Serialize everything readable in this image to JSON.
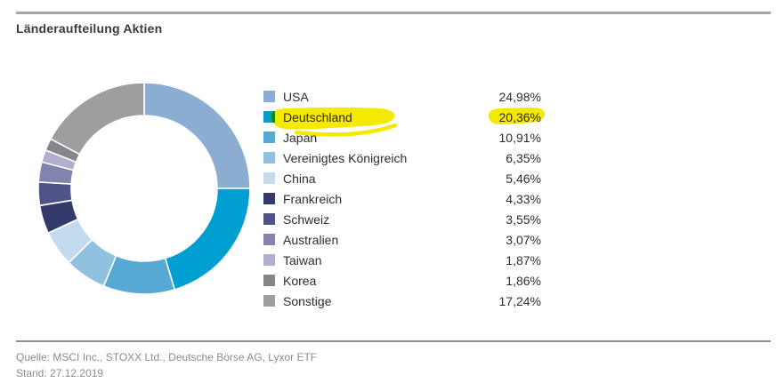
{
  "title": "Länderaufteilung Aktien",
  "chart_data": {
    "type": "pie",
    "variant": "donut",
    "title": "Länderaufteilung Aktien",
    "direction": "clockwise",
    "start_angle_deg": 0,
    "legend_position": "right",
    "value_format": "percent-comma-decimal",
    "categories": [
      "USA",
      "Deutschland",
      "Japan",
      "Vereinigtes Königreich",
      "China",
      "Frankreich",
      "Schweiz",
      "Australien",
      "Taiwan",
      "Korea",
      "Sonstige"
    ],
    "values": [
      24.98,
      20.36,
      10.91,
      6.35,
      5.46,
      4.33,
      3.55,
      3.07,
      1.87,
      1.86,
      17.24
    ],
    "value_labels": [
      "24,98%",
      "20,36%",
      "10,91%",
      "6,35%",
      "5,46%",
      "4,33%",
      "3,55%",
      "3,07%",
      "1,87%",
      "1,86%",
      "17,24%"
    ],
    "colors": [
      "#8badd2",
      "#009fd1",
      "#57a9d4",
      "#90c1de",
      "#c2dcee",
      "#333a6a",
      "#4f5386",
      "#8185ae",
      "#aeb0ce",
      "#85868a",
      "#9d9ea0"
    ],
    "highlighted_category": "Deutschland",
    "highlighted_value_label": "20,36%",
    "highlight_color": "#f6e900"
  },
  "footer": {
    "source_line": "Quelle: MSCI Inc., STOXX Ltd., Deutsche Börse AG, Lyxor ETF",
    "date_line": "Stand: 27.12.2019"
  }
}
